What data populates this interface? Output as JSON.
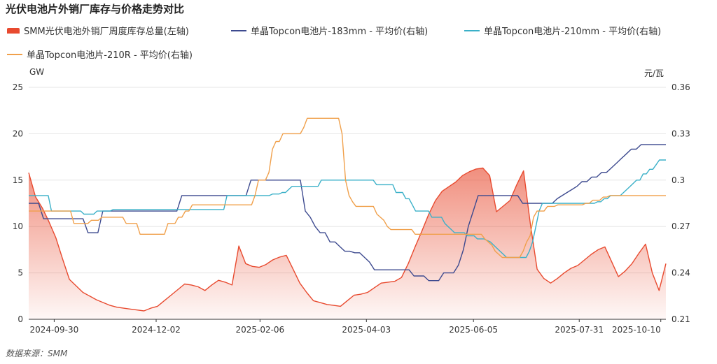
{
  "title": "光伏电池片外销厂库存与价格走势对比",
  "source": "数据来源：SMM",
  "colors": {
    "inventory": "#e84a2f",
    "p183": "#3d4a8f",
    "p210": "#3ab0c8",
    "p210r": "#f0a04b",
    "grid": "#e6e6e6",
    "axis": "#333333"
  },
  "chart_data": {
    "type": "line",
    "title": "光伏电池片外销厂库存与价格走势对比",
    "left_axis": {
      "unit": "GW",
      "ylim": [
        0,
        25
      ],
      "ticks": [
        "0",
        "5",
        "10",
        "15",
        "20",
        "25"
      ]
    },
    "right_axis": {
      "unit": "元/瓦",
      "ylim": [
        0.21,
        0.36
      ],
      "ticks": [
        "0.21",
        "0.24",
        "0.27",
        "0.3",
        "0.33",
        "0.36"
      ]
    },
    "x_labels": [
      "2024-09-30",
      "2024-12-02",
      "2025-02-06",
      "2025-04-03",
      "2025-06-05",
      "2025-07-31",
      "2025-10-10"
    ],
    "grid": true,
    "legend_position": "top",
    "series": [
      {
        "key": "inventory",
        "name": "SMM光伏电池外销厂周度库存总量(左轴)",
        "axis": "left",
        "style": "area",
        "values": [
          15.8,
          13.2,
          12,
          10.5,
          8.8,
          6.5,
          4.3,
          3.6,
          2.9,
          2.5,
          2.1,
          1.8,
          1.5,
          1.3,
          1.2,
          1.1,
          1.0,
          0.9,
          1.2,
          1.4,
          2.0,
          2.6,
          3.2,
          3.8,
          3.7,
          3.5,
          3.1,
          3.7,
          4.2,
          4.0,
          3.7,
          7.9,
          6.0,
          5.7,
          5.6,
          5.9,
          6.4,
          6.7,
          6.9,
          5.4,
          3.9,
          2.9,
          2.0,
          1.8,
          1.6,
          1.5,
          1.4,
          2.0,
          2.6,
          2.7,
          2.9,
          3.4,
          3.9,
          4.0,
          4.1,
          4.5,
          6.0,
          7.8,
          9.5,
          11.3,
          12.8,
          13.8,
          14.3,
          14.8,
          15.5,
          15.9,
          16.2,
          16.3,
          15.5,
          11.6,
          12.2,
          12.8,
          14.5,
          16.0,
          10.3,
          5.4,
          4.4,
          3.9,
          4.4,
          5.0,
          5.5,
          5.8,
          6.4,
          7.0,
          7.5,
          7.8,
          6.2,
          4.6,
          5.2,
          6.0,
          7.1,
          8.1,
          5.0,
          3.1,
          6.0
        ]
      },
      {
        "key": "p183",
        "name": "单晶Topcon电池片-183mm - 平均价(右轴)",
        "axis": "right",
        "style": "line",
        "values": [
          0.285,
          0.285,
          0.285,
          0.275,
          0.275,
          0.275,
          0.275,
          0.275,
          0.275,
          0.275,
          0.275,
          0.275,
          0.266,
          0.266,
          0.266,
          0.28,
          0.28,
          0.28,
          0.28,
          0.28,
          0.28,
          0.28,
          0.28,
          0.28,
          0.28,
          0.28,
          0.28,
          0.28,
          0.28,
          0.28,
          0.28,
          0.29,
          0.29,
          0.29,
          0.29,
          0.29,
          0.29,
          0.29,
          0.29,
          0.29,
          0.29,
          0.29,
          0.29,
          0.29,
          0.29,
          0.3,
          0.3,
          0.3,
          0.3,
          0.3,
          0.3,
          0.3,
          0.3,
          0.3,
          0.3,
          0.3,
          0.28,
          0.276,
          0.27,
          0.266,
          0.266,
          0.26,
          0.26,
          0.257,
          0.254,
          0.254,
          0.253,
          0.253,
          0.25,
          0.247,
          0.242,
          0.242,
          0.242,
          0.242,
          0.242,
          0.242,
          0.242,
          0.242,
          0.238,
          0.238,
          0.238,
          0.235,
          0.235,
          0.235,
          0.24,
          0.24,
          0.24,
          0.245,
          0.255,
          0.27,
          0.28,
          0.29,
          0.29,
          0.29,
          0.29,
          0.29,
          0.29,
          0.29,
          0.29,
          0.29,
          0.285,
          0.285,
          0.285,
          0.285,
          0.285,
          0.285,
          0.285,
          0.288,
          0.29,
          0.292,
          0.294,
          0.296,
          0.299,
          0.299,
          0.302,
          0.302,
          0.305,
          0.305,
          0.308,
          0.311,
          0.314,
          0.317,
          0.32,
          0.32,
          0.323,
          0.323,
          0.323,
          0.323,
          0.323,
          0.323
        ]
      },
      {
        "key": "p210",
        "name": "单晶Topcon电池片-210mm - 平均价(右轴)",
        "axis": "right",
        "style": "line",
        "values": [
          0.29,
          0.29,
          0.29,
          0.29,
          0.29,
          0.29,
          0.29,
          0.28,
          0.28,
          0.28,
          0.28,
          0.28,
          0.28,
          0.28,
          0.28,
          0.28,
          0.28,
          0.278,
          0.278,
          0.278,
          0.278,
          0.28,
          0.28,
          0.28,
          0.28,
          0.28,
          0.281,
          0.281,
          0.281,
          0.281,
          0.281,
          0.281,
          0.281,
          0.281,
          0.281,
          0.281,
          0.281,
          0.281,
          0.281,
          0.281,
          0.281,
          0.281,
          0.281,
          0.281,
          0.281,
          0.281,
          0.281,
          0.281,
          0.281,
          0.281,
          0.281,
          0.281,
          0.281,
          0.281,
          0.281,
          0.281,
          0.281,
          0.281,
          0.281,
          0.281,
          0.281,
          0.29,
          0.29,
          0.29,
          0.29,
          0.29,
          0.29,
          0.29,
          0.29,
          0.29,
          0.29,
          0.29,
          0.29,
          0.29,
          0.29,
          0.291,
          0.291,
          0.291,
          0.292,
          0.292,
          0.294,
          0.296,
          0.296,
          0.296,
          0.296,
          0.296,
          0.296,
          0.296,
          0.296,
          0.296,
          0.3,
          0.3,
          0.3,
          0.3,
          0.3,
          0.3,
          0.3,
          0.3,
          0.3,
          0.3,
          0.3,
          0.3,
          0.3,
          0.3,
          0.3,
          0.3,
          0.3,
          0.297,
          0.297,
          0.297,
          0.297,
          0.297,
          0.297,
          0.292,
          0.292,
          0.292,
          0.288,
          0.288,
          0.284,
          0.28,
          0.28,
          0.28,
          0.28,
          0.28,
          0.276,
          0.276,
          0.276,
          0.276,
          0.272,
          0.27,
          0.268,
          0.266,
          0.266,
          0.266,
          0.266,
          0.264,
          0.264,
          0.264,
          0.262,
          0.262,
          0.262,
          0.261,
          0.26,
          0.258,
          0.256,
          0.254,
          0.252,
          0.25,
          0.25,
          0.25,
          0.25,
          0.25,
          0.25,
          0.25,
          0.254,
          0.26,
          0.27,
          0.28,
          0.285,
          0.285,
          0.285,
          0.285,
          0.285,
          0.285,
          0.285,
          0.285,
          0.285,
          0.285,
          0.285,
          0.285,
          0.285,
          0.285,
          0.285,
          0.285,
          0.285,
          0.286,
          0.286,
          0.288,
          0.288,
          0.29,
          0.29,
          0.29,
          0.29,
          0.292,
          0.294,
          0.296,
          0.298,
          0.3,
          0.3,
          0.304,
          0.304,
          0.307,
          0.307,
          0.31,
          0.313,
          0.313,
          0.313
        ]
      },
      {
        "key": "p210r",
        "name": "单晶Topcon电池片-210R - 平均价(右轴)",
        "axis": "right",
        "style": "line",
        "values": [
          0.28,
          0.28,
          0.28,
          0.28,
          0.28,
          0.28,
          0.28,
          0.28,
          0.28,
          0.28,
          0.28,
          0.28,
          0.28,
          0.272,
          0.272,
          0.272,
          0.272,
          0.272,
          0.274,
          0.274,
          0.274,
          0.276,
          0.276,
          0.276,
          0.276,
          0.276,
          0.276,
          0.276,
          0.272,
          0.272,
          0.272,
          0.272,
          0.265,
          0.265,
          0.265,
          0.265,
          0.265,
          0.265,
          0.265,
          0.265,
          0.272,
          0.272,
          0.272,
          0.276,
          0.276,
          0.28,
          0.28,
          0.284,
          0.284,
          0.284,
          0.284,
          0.284,
          0.284,
          0.284,
          0.284,
          0.284,
          0.284,
          0.284,
          0.284,
          0.284,
          0.284,
          0.284,
          0.284,
          0.284,
          0.284,
          0.29,
          0.3,
          0.3,
          0.3,
          0.305,
          0.32,
          0.325,
          0.325,
          0.33,
          0.33,
          0.33,
          0.33,
          0.33,
          0.33,
          0.334,
          0.34,
          0.34,
          0.34,
          0.34,
          0.34,
          0.34,
          0.34,
          0.34,
          0.34,
          0.34,
          0.33,
          0.3,
          0.29,
          0.286,
          0.283,
          0.283,
          0.283,
          0.283,
          0.283,
          0.283,
          0.278,
          0.276,
          0.274,
          0.27,
          0.268,
          0.268,
          0.268,
          0.268,
          0.268,
          0.268,
          0.268,
          0.265,
          0.265,
          0.265,
          0.265,
          0.265,
          0.265,
          0.265,
          0.265,
          0.265,
          0.265,
          0.265,
          0.265,
          0.265,
          0.265,
          0.265,
          0.265,
          0.265,
          0.265,
          0.265,
          0.265,
          0.262,
          0.26,
          0.258,
          0.254,
          0.252,
          0.25,
          0.25,
          0.25,
          0.25,
          0.25,
          0.25,
          0.254,
          0.26,
          0.264,
          0.276,
          0.28,
          0.28,
          0.28,
          0.283,
          0.283,
          0.283,
          0.284,
          0.284,
          0.284,
          0.284,
          0.284,
          0.284,
          0.284,
          0.284,
          0.285,
          0.285,
          0.287,
          0.287,
          0.287,
          0.289,
          0.289,
          0.29,
          0.29,
          0.29,
          0.29,
          0.29,
          0.29,
          0.29,
          0.29,
          0.29,
          0.29,
          0.29,
          0.29,
          0.29,
          0.29,
          0.29,
          0.29,
          0.29
        ]
      }
    ]
  }
}
